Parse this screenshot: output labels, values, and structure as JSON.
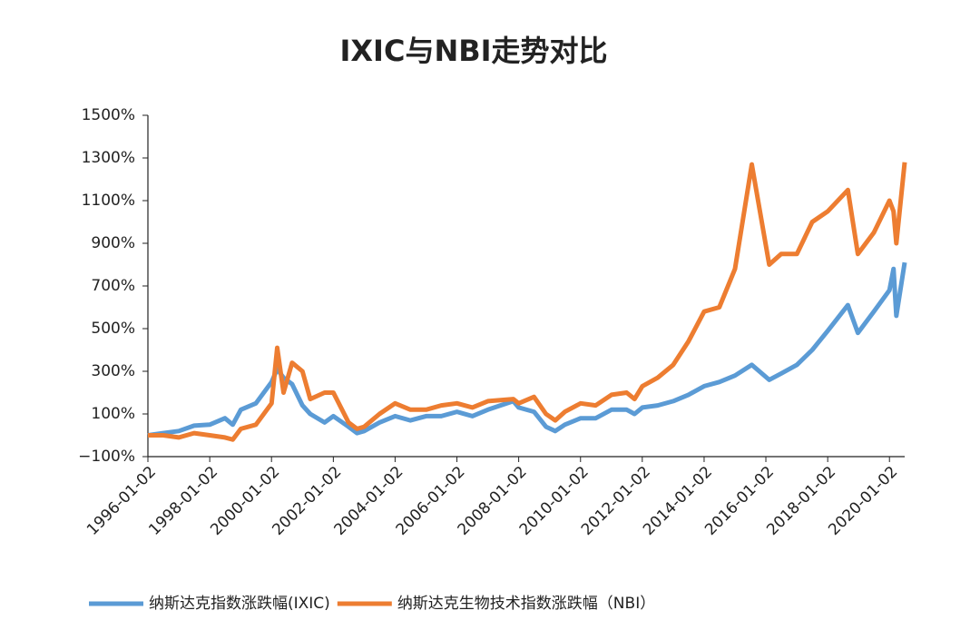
{
  "chart_data": {
    "type": "line",
    "title": "IXIC与NBI走势对比",
    "x": [
      "1996-01-02",
      "1996-07-01",
      "1997-01-02",
      "1997-07-01",
      "1998-01-02",
      "1998-07-01",
      "1998-10-01",
      "1999-01-04",
      "1999-07-01",
      "2000-01-03",
      "2000-03-10",
      "2000-05-24",
      "2000-09-01",
      "2001-01-02",
      "2001-04-04",
      "2001-09-21",
      "2002-01-02",
      "2002-07-01",
      "2002-10-09",
      "2003-01-02",
      "2003-07-01",
      "2004-01-02",
      "2004-07-01",
      "2005-01-03",
      "2005-07-01",
      "2006-01-03",
      "2006-07-03",
      "2007-01-03",
      "2007-10-31",
      "2008-01-02",
      "2008-07-01",
      "2008-11-20",
      "2009-03-09",
      "2009-07-01",
      "2010-01-04",
      "2010-07-01",
      "2011-01-03",
      "2011-07-01",
      "2011-10-03",
      "2012-01-03",
      "2012-07-02",
      "2013-01-02",
      "2013-07-01",
      "2014-01-02",
      "2014-07-01",
      "2015-01-02",
      "2015-07-20",
      "2016-02-11",
      "2016-07-01",
      "2017-01-03",
      "2017-07-03",
      "2018-01-02",
      "2018-08-29",
      "2018-12-24",
      "2019-07-01",
      "2020-01-02",
      "2020-02-19",
      "2020-03-23",
      "2020-06-30"
    ],
    "series": [
      {
        "name": "纳斯达克指数涨跌幅(IXIC)",
        "color": "#5b9bd5",
        "values": [
          0,
          10,
          20,
          45,
          50,
          80,
          50,
          120,
          150,
          250,
          310,
          270,
          240,
          140,
          100,
          60,
          90,
          40,
          10,
          20,
          60,
          90,
          70,
          90,
          90,
          110,
          90,
          120,
          160,
          130,
          110,
          40,
          20,
          50,
          80,
          80,
          120,
          120,
          100,
          130,
          140,
          160,
          190,
          230,
          250,
          280,
          330,
          260,
          290,
          330,
          400,
          490,
          610,
          480,
          580,
          680,
          780,
          560,
          810
        ]
      },
      {
        "name": "纳斯达克生物技术指数涨跌幅（NBI）",
        "color": "#ed7d31",
        "values": [
          0,
          0,
          -10,
          10,
          0,
          -10,
          -20,
          30,
          50,
          150,
          410,
          200,
          340,
          300,
          170,
          200,
          200,
          60,
          30,
          40,
          100,
          150,
          120,
          120,
          140,
          150,
          130,
          160,
          170,
          150,
          180,
          100,
          70,
          110,
          150,
          140,
          190,
          200,
          170,
          230,
          270,
          330,
          440,
          580,
          600,
          780,
          1270,
          800,
          850,
          850,
          1000,
          1050,
          1150,
          850,
          950,
          1100,
          1050,
          900,
          1280
        ]
      }
    ],
    "xlim": [
      "1996-01-02",
      "2020-06-30"
    ],
    "xticks": [
      "1996-01-02",
      "1998-01-02",
      "2000-01-02",
      "2002-01-02",
      "2004-01-02",
      "2006-01-02",
      "2008-01-02",
      "2010-01-02",
      "2012-01-02",
      "2014-01-02",
      "2016-01-02",
      "2018-01-02",
      "2020-01-02"
    ],
    "ylim": [
      -100,
      1500
    ],
    "yticks": [
      {
        "value": -100,
        "label": "−100%"
      },
      {
        "value": 100,
        "label": "100%"
      },
      {
        "value": 300,
        "label": "300%"
      },
      {
        "value": 500,
        "label": "500%"
      },
      {
        "value": 700,
        "label": "700%"
      },
      {
        "value": 900,
        "label": "900%"
      },
      {
        "value": 1100,
        "label": "1100%"
      },
      {
        "value": 1300,
        "label": "1300%"
      },
      {
        "value": 1500,
        "label": "1500%"
      }
    ],
    "grid": false,
    "legend": "bottom"
  }
}
